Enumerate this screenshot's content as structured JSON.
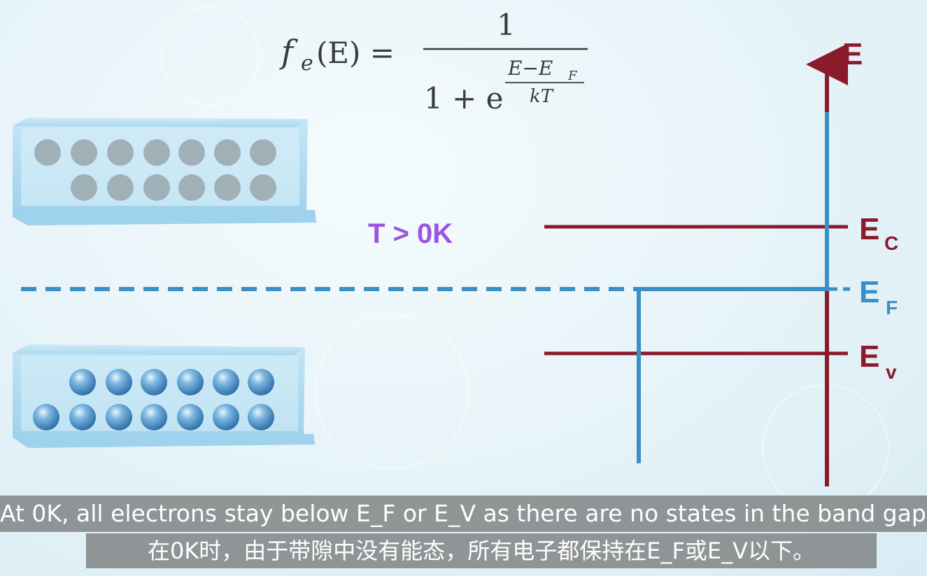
{
  "formula": {
    "lhs": "f",
    "lhs_sub": "e",
    "lhs_arg": "(E) =",
    "numerator": "1",
    "denominator_base": "1 + e",
    "exp_numerator": "E−E",
    "exp_numerator_sub": "F",
    "exp_denominator": "kT"
  },
  "temperature_label": "T > 0K",
  "energy_axis": {
    "label": "E",
    "levels": [
      {
        "name": "E",
        "sub": "C"
      },
      {
        "name": "E",
        "sub": "F"
      },
      {
        "name": "E",
        "sub": "v"
      }
    ]
  },
  "colors": {
    "band_edge": "#8b1a2b",
    "fermi": "#3a8fc4",
    "temperature": "#9b55e0"
  },
  "subtitles": {
    "english": "At 0K, all electrons stay below E_F or E_V as there are no states in the band gap.",
    "chinese": "在0K时，由于带隙中没有能态，所有电子都保持在E_F或E_V以下。"
  }
}
